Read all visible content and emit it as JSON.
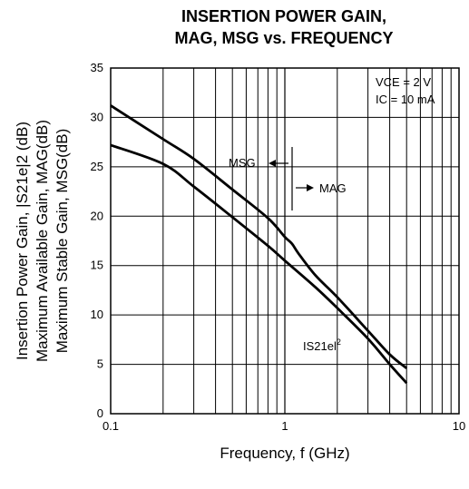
{
  "chart_data": {
    "type": "line",
    "title_line1": "INSERTION POWER GAIN,",
    "title_line2": "MAG, MSG vs. FREQUENCY",
    "xlabel": "Frequency, f (GHz)",
    "ylabel_lines": [
      "Insertion Power Gain, |S21e|2 (dB)",
      "Maximum Available Gain, MAG(dB)",
      "Maximum Stable Gain, MSG(dB)"
    ],
    "x_scale": "log",
    "xlim": [
      0.1,
      10
    ],
    "ylim": [
      0,
      35
    ],
    "x_ticks": [
      0.1,
      1,
      10
    ],
    "x_tick_labels": [
      "0.1",
      "1",
      "10"
    ],
    "y_ticks": [
      0,
      5,
      10,
      15,
      20,
      25,
      30,
      35
    ],
    "grid": true,
    "conditions": {
      "vce": "VCE = 2 V",
      "ic": "IC = 10 mA"
    },
    "series": [
      {
        "name": "MSG / MAG",
        "x": [
          0.1,
          0.2,
          0.3,
          0.5,
          0.8,
          1.0,
          1.1,
          1.2,
          1.5,
          2.0,
          3.0,
          4.0,
          5.0
        ],
        "values": [
          31.2,
          27.8,
          25.8,
          22.7,
          19.8,
          17.9,
          17.2,
          16.2,
          14.0,
          11.8,
          8.4,
          6.0,
          4.6
        ]
      },
      {
        "name": "|S21e|2",
        "x": [
          0.1,
          0.2,
          0.3,
          0.5,
          0.8,
          1.0,
          1.5,
          2.0,
          3.0,
          4.0,
          5.0
        ],
        "values": [
          27.2,
          25.3,
          23.0,
          19.9,
          17.0,
          15.5,
          12.8,
          10.7,
          7.6,
          5.0,
          3.1
        ]
      }
    ],
    "annotations": {
      "msg": "MSG",
      "mag": "MAG",
      "s21_main": "IS21el",
      "s21_sup": "2"
    }
  }
}
